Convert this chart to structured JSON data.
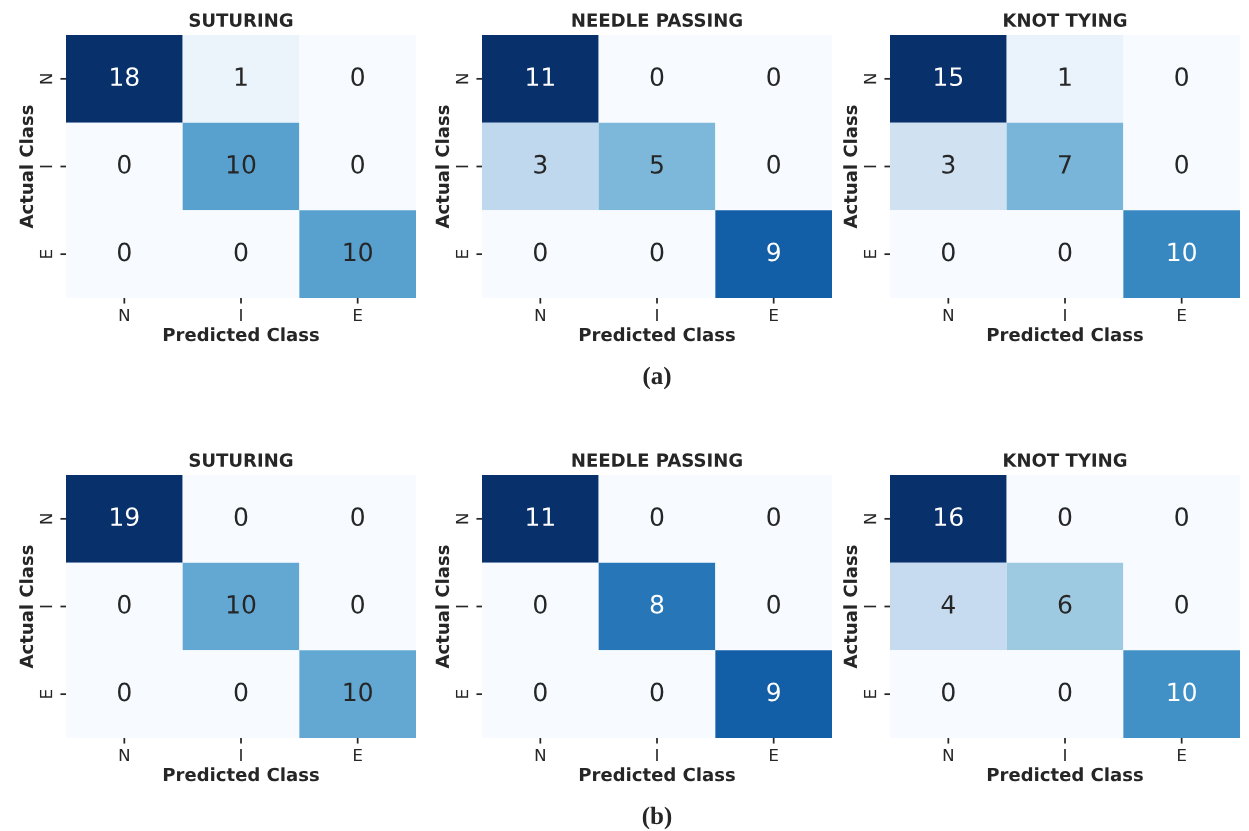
{
  "chart_data": [
    {
      "type": "heatmap",
      "title": "SUTURING",
      "xlabel": "Predicted Class",
      "ylabel": "Actual Class",
      "categories": [
        "N",
        "I",
        "E"
      ],
      "y_categories": [
        "N",
        "I",
        "E"
      ],
      "data_labels": true,
      "cells": [
        [
          18,
          1,
          0
        ],
        [
          0,
          10,
          0
        ],
        [
          0,
          0,
          10
        ]
      ]
    },
    {
      "type": "heatmap",
      "title": "NEEDLE PASSING",
      "xlabel": "Predicted Class",
      "ylabel": "Actual Class",
      "categories": [
        "N",
        "I",
        "E"
      ],
      "y_categories": [
        "N",
        "I",
        "E"
      ],
      "data_labels": true,
      "cells": [
        [
          11,
          0,
          0
        ],
        [
          3,
          5,
          0
        ],
        [
          0,
          0,
          9
        ]
      ],
      "annotations": [
        "(a)"
      ]
    },
    {
      "type": "heatmap",
      "title": "KNOT TYING",
      "xlabel": "Predicted Class",
      "ylabel": "Actual Class",
      "categories": [
        "N",
        "I",
        "E"
      ],
      "y_categories": [
        "N",
        "I",
        "E"
      ],
      "data_labels": true,
      "cells": [
        [
          15,
          1,
          0
        ],
        [
          3,
          7,
          0
        ],
        [
          0,
          0,
          10
        ]
      ]
    },
    {
      "type": "heatmap",
      "title": "SUTURING",
      "xlabel": "Predicted Class",
      "ylabel": "Actual Class",
      "categories": [
        "N",
        "I",
        "E"
      ],
      "y_categories": [
        "N",
        "I",
        "E"
      ],
      "data_labels": true,
      "cells": [
        [
          19,
          0,
          0
        ],
        [
          0,
          10,
          0
        ],
        [
          0,
          0,
          10
        ]
      ]
    },
    {
      "type": "heatmap",
      "title": "NEEDLE PASSING",
      "xlabel": "Predicted Class",
      "ylabel": "Actual Class",
      "categories": [
        "N",
        "I",
        "E"
      ],
      "y_categories": [
        "N",
        "I",
        "E"
      ],
      "data_labels": true,
      "cells": [
        [
          11,
          0,
          0
        ],
        [
          0,
          8,
          0
        ],
        [
          0,
          0,
          9
        ]
      ],
      "annotations": [
        "(b)"
      ]
    },
    {
      "type": "heatmap",
      "title": "KNOT TYING",
      "xlabel": "Predicted Class",
      "ylabel": "Actual Class",
      "categories": [
        "N",
        "I",
        "E"
      ],
      "y_categories": [
        "N",
        "I",
        "E"
      ],
      "data_labels": true,
      "cells": [
        [
          16,
          0,
          0
        ],
        [
          4,
          6,
          0
        ],
        [
          0,
          0,
          10
        ]
      ]
    }
  ]
}
